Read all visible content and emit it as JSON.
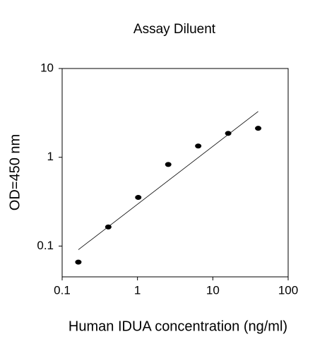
{
  "chart_data": {
    "type": "scatter",
    "title": "Assay Diluent",
    "xlabel": "Human IDUA concentration (ng/ml)",
    "ylabel": "OD=450 nm",
    "xscale": "log",
    "yscale": "log",
    "xlim": [
      0.1,
      100
    ],
    "ylim": [
      0.045,
      10
    ],
    "xticks": [
      0.1,
      1,
      10,
      100
    ],
    "yticks": [
      0.1,
      1,
      10
    ],
    "color": "#000000",
    "x": [
      0.164,
      0.41,
      1.024,
      2.56,
      6.4,
      16,
      40
    ],
    "y": [
      0.066,
      0.164,
      0.353,
      0.83,
      1.34,
      1.86,
      2.12
    ],
    "trendline": {
      "x": [
        0.164,
        40
      ],
      "y": [
        0.091,
        3.28
      ]
    }
  }
}
